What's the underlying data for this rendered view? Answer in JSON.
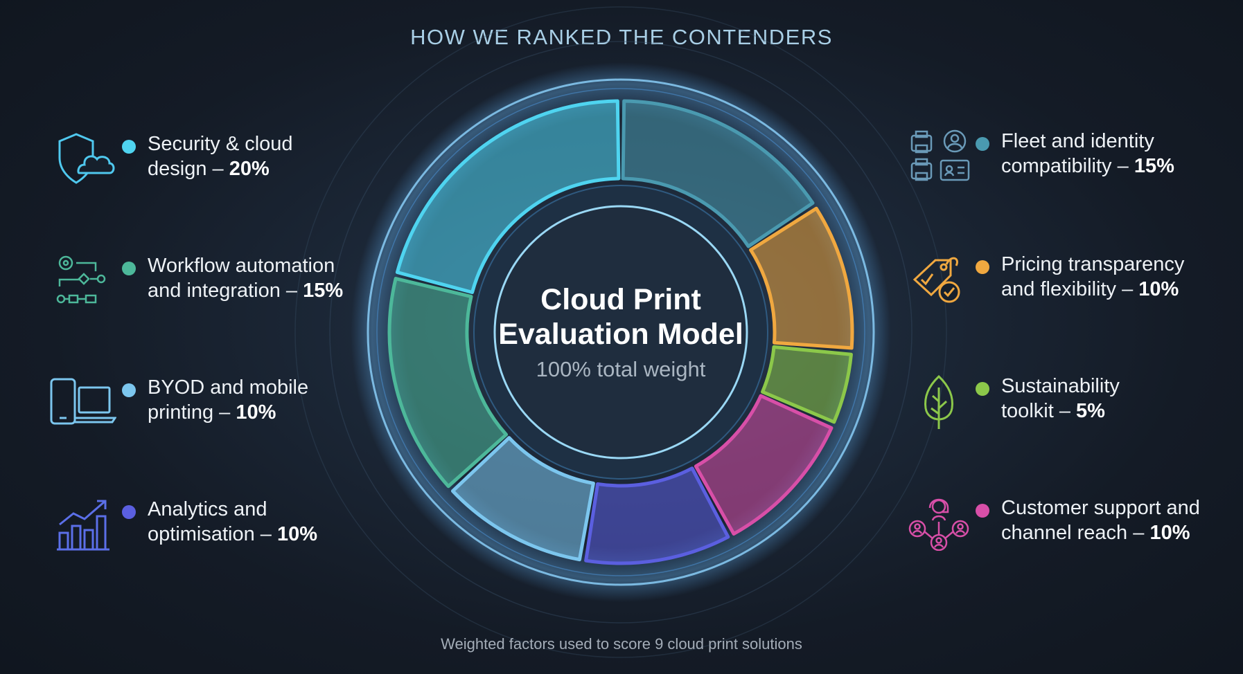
{
  "header": {
    "title": "HOW WE RANKED THE CONTENDERS"
  },
  "center": {
    "line1": "Cloud Print",
    "line2": "Evaluation Model",
    "subtitle": "100% total weight"
  },
  "footer": {
    "note": "Weighted factors used to score 9 cloud print solutions"
  },
  "left_items": [
    {
      "label": "Security & cloud",
      "label2": "design – ",
      "weight": "20%",
      "color": "#4fd4f0",
      "icon": "shield-cloud-icon"
    },
    {
      "label": "Workflow automation",
      "label2": "and integration – ",
      "weight": "15%",
      "color": "#4db89a",
      "icon": "workflow-icon"
    },
    {
      "label": "BYOD and mobile",
      "label2": "printing – ",
      "weight": "10%",
      "color": "#7cc6ee",
      "icon": "devices-icon"
    },
    {
      "label": "Analytics and",
      "label2": "optimisation – ",
      "weight": "10%",
      "color": "#5b5fe0",
      "icon": "bar-chart-icon"
    }
  ],
  "right_items": [
    {
      "label": "Fleet and identity",
      "label2": "compatibility – ",
      "weight": "15%",
      "color": "#4a9ab0",
      "icon": "printer-identity-icon"
    },
    {
      "label": "Pricing transparency",
      "label2": "and flexibility – ",
      "weight": "10%",
      "color": "#f0a840",
      "icon": "price-tag-icon"
    },
    {
      "label": "Sustainability",
      "label2": "toolkit – ",
      "weight": "5%",
      "color": "#8cc84a",
      "icon": "leaf-icon"
    },
    {
      "label": "Customer support and",
      "label2": "channel reach – ",
      "weight": "10%",
      "color": "#d84fa8",
      "icon": "support-network-icon"
    }
  ],
  "chart_data": {
    "type": "pie",
    "style": "donut",
    "title": "Cloud Print Evaluation Model",
    "start": "top, clockwise",
    "categories": [
      "Fleet and identity compatibility",
      "Pricing transparency and flexibility",
      "Sustainability toolkit",
      "Customer support and channel reach",
      "Analytics and optimisation",
      "BYOD and mobile printing",
      "Workflow automation and integration",
      "Security & cloud design"
    ],
    "values": [
      15,
      10,
      5,
      10,
      10,
      10,
      15,
      20
    ],
    "colors": [
      "#4a9ab0",
      "#f0a840",
      "#8cc84a",
      "#d84fa8",
      "#5b5fe0",
      "#7cc6ee",
      "#4db89a",
      "#4fd4f0"
    ]
  }
}
